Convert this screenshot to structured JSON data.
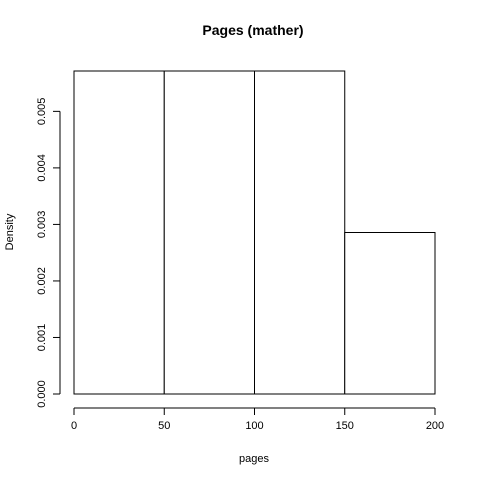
{
  "chart_data": {
    "type": "bar",
    "title": "Pages (mather)",
    "xlabel": "pages",
    "ylabel": "Density",
    "bins": [
      {
        "start": 0,
        "end": 50,
        "density": 0.005714
      },
      {
        "start": 50,
        "end": 100,
        "density": 0.005714
      },
      {
        "start": 100,
        "end": 150,
        "density": 0.005714
      },
      {
        "start": 150,
        "end": 200,
        "density": 0.002857
      }
    ],
    "x_ticks": [
      {
        "value": 0,
        "label": "0"
      },
      {
        "value": 50,
        "label": "50"
      },
      {
        "value": 100,
        "label": "100"
      },
      {
        "value": 150,
        "label": "150"
      },
      {
        "value": 200,
        "label": "200"
      }
    ],
    "y_ticks": [
      {
        "value": 0,
        "label": "0.000"
      },
      {
        "value": 0.001,
        "label": "0.001"
      },
      {
        "value": 0.002,
        "label": "0.002"
      },
      {
        "value": 0.003,
        "label": "0.003"
      },
      {
        "value": 0.004,
        "label": "0.004"
      },
      {
        "value": 0.005,
        "label": "0.005"
      }
    ],
    "xlim": [
      0,
      200
    ],
    "ylim": [
      0,
      0.005714
    ],
    "grid": false,
    "legend": "none"
  }
}
